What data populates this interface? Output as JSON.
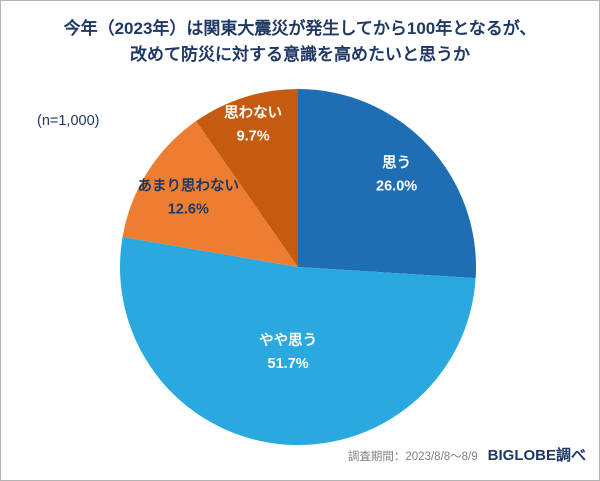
{
  "page": {
    "title_line1": "今年（2023年）は関東大震災が発生してから100年となるが、",
    "title_line2": "改めて防災に対する意識を高めたいと思うか",
    "sample_size": "(n=1,000)",
    "footer": {
      "survey_period": "調査期間：2023/8/8～8/9",
      "source": "BIGLOBE調べ"
    },
    "colors": {
      "title_text": "#1f3864",
      "footer_gray": "#7f7f7f"
    }
  },
  "chart_data": {
    "type": "pie",
    "title": "今年（2023年）は関東大震災が発生してから100年となるが、改めて防災に対する意識を高めたいと思うか",
    "sample_label": "(n=1,000)",
    "start_angle_deg": -90,
    "direction": "clockwise",
    "legend": "none",
    "slices": [
      {
        "label": "思う",
        "value": 26.0,
        "color": "#1f6eb4",
        "label_color": "#ffffff",
        "label_r": 0.76
      },
      {
        "label": "やや思う",
        "value": 51.7,
        "color": "#29a9e0",
        "label_color": "#ffffff",
        "label_r": 0.48
      },
      {
        "label": "あまり思わない",
        "value": 12.6,
        "color": "#ed7d31",
        "label_color": "#1f3864",
        "label_r": 0.73
      },
      {
        "label": "思わない",
        "value": 9.7,
        "color": "#c55a11",
        "label_color": "#ffffff",
        "label_r": 0.84
      }
    ]
  }
}
